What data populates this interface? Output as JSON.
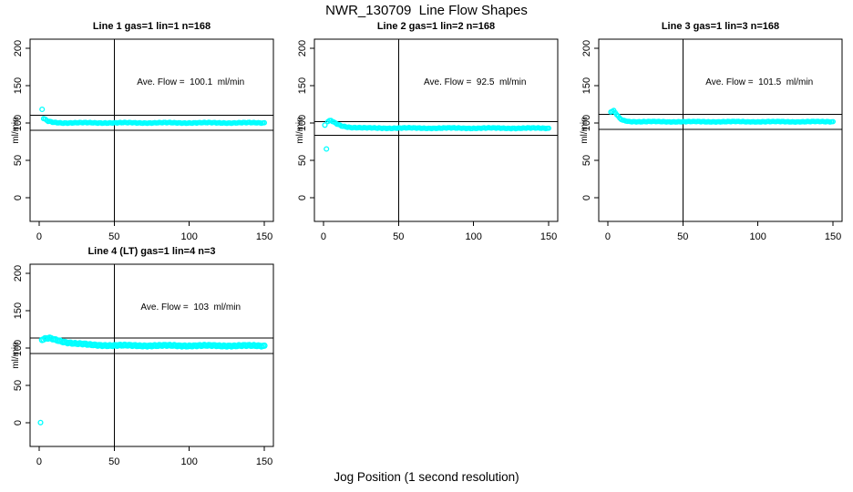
{
  "title": "NWR_130709  Line Flow Shapes",
  "xlabel": "Jog Position (1 second resolution)",
  "chart_data": {
    "type": "scatter",
    "point_color": "#00FFFF",
    "line_color": "#000000",
    "background": "#FFFFFF",
    "ylabel": "ml/min",
    "x_ticks": [
      0,
      50,
      100,
      150
    ],
    "y_ticks": [
      0,
      50,
      100,
      150,
      200
    ],
    "xlim": [
      -6,
      156
    ],
    "ylim": [
      -32,
      212
    ],
    "grid": false,
    "vline_x": 50,
    "panels": [
      {
        "title": "Line 1 gas=1 lin=1 n=168",
        "annotation": "Ave. Flow =  100.1  ml/min",
        "ave_flow_ml_min": 100.1,
        "n": 168,
        "ref_lines": [
          110.1,
          90.1
        ],
        "band_profile": [
          [
            3,
            105.5
          ],
          [
            6,
            102
          ],
          [
            10,
            100.6
          ],
          [
            16,
            100
          ],
          [
            150,
            100
          ]
        ],
        "outliers": [
          [
            2,
            118
          ]
        ],
        "point_radius": 2.2,
        "noise_amp": 1.0
      },
      {
        "title": "Line 2 gas=1 lin=2 n=168",
        "annotation": "Ave. Flow =  92.5  ml/min",
        "ave_flow_ml_min": 92.5,
        "n": 168,
        "ref_lines": [
          101.75,
          83.25
        ],
        "band_profile": [
          [
            3,
            101.5
          ],
          [
            5,
            103
          ],
          [
            8,
            99.5
          ],
          [
            12,
            96
          ],
          [
            18,
            94
          ],
          [
            28,
            93
          ],
          [
            150,
            92.8
          ]
        ],
        "outliers": [
          [
            1,
            97
          ],
          [
            2,
            65
          ]
        ],
        "point_radius": 2.2,
        "noise_amp": 1.0
      },
      {
        "title": "Line 3 gas=1 lin=3 n=168",
        "annotation": "Ave. Flow =  101.5  ml/min",
        "ave_flow_ml_min": 101.5,
        "n": 168,
        "ref_lines": [
          111.65,
          91.35
        ],
        "band_profile": [
          [
            2,
            114.5
          ],
          [
            4,
            116
          ],
          [
            6,
            111
          ],
          [
            8,
            106
          ],
          [
            10,
            103.5
          ],
          [
            14,
            102
          ],
          [
            20,
            101.5
          ],
          [
            150,
            101.5
          ]
        ],
        "outliers": [],
        "point_radius": 2.2,
        "noise_amp": 0.8
      },
      {
        "title": "Line 4 (LT) gas=1 lin=4 n=3",
        "annotation": "Ave. Flow =  103  ml/min",
        "ave_flow_ml_min": 103,
        "n": 3,
        "ref_lines": [
          113.3,
          92.7
        ],
        "band_profile": [
          [
            2,
            110.5
          ],
          [
            4,
            112
          ],
          [
            7,
            113
          ],
          [
            12,
            110.5
          ],
          [
            18,
            107.5
          ],
          [
            25,
            105.5
          ],
          [
            35,
            104
          ],
          [
            48,
            103.2
          ],
          [
            70,
            103
          ],
          [
            150,
            102.8
          ]
        ],
        "outliers": [
          [
            1,
            0
          ]
        ],
        "point_radius": 2.8,
        "noise_amp": 1.3
      }
    ]
  }
}
